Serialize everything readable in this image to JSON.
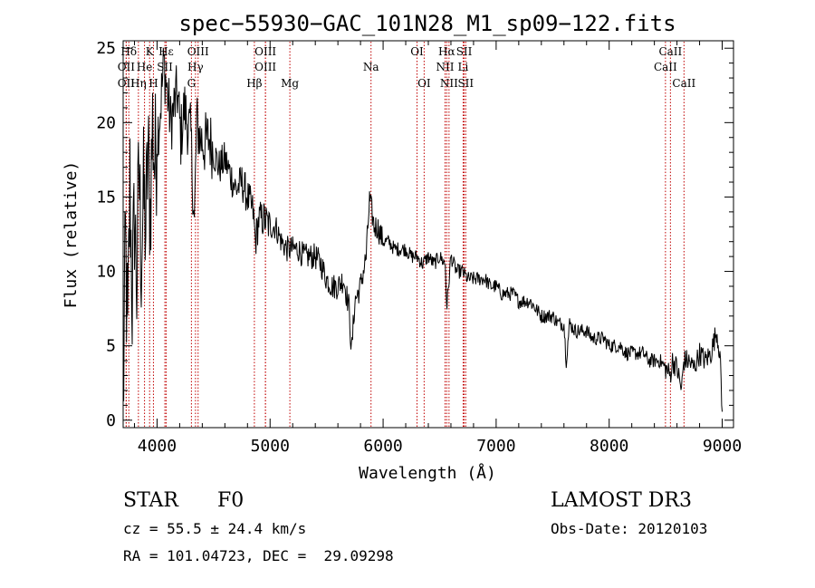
{
  "chart_data": {
    "type": "line",
    "title": "spec−55930−GAC_101N28_M1_sp09−122.fits",
    "xlabel": "Wavelength (Å)",
    "ylabel": "Flux (relative)",
    "xlim": [
      3700,
      9100
    ],
    "ylim": [
      -0.5,
      25.5
    ],
    "xticks": [
      4000,
      5000,
      6000,
      7000,
      8000,
      9000
    ],
    "yticks": [
      0,
      5,
      10,
      15,
      20,
      25
    ],
    "series": [
      {
        "name": "flux",
        "x": [
          3700,
          3720,
          3740,
          3760,
          3780,
          3800,
          3820,
          3840,
          3860,
          3880,
          3900,
          3920,
          3940,
          3960,
          3980,
          4000,
          4030,
          4060,
          4090,
          4120,
          4150,
          4180,
          4210,
          4240,
          4270,
          4300,
          4330,
          4350,
          4380,
          4420,
          4460,
          4500,
          4550,
          4600,
          4650,
          4700,
          4750,
          4800,
          4850,
          4870,
          4900,
          4950,
          5000,
          5050,
          5100,
          5150,
          5200,
          5250,
          5300,
          5350,
          5400,
          5450,
          5500,
          5550,
          5600,
          5650,
          5700,
          5720,
          5750,
          5800,
          5850,
          5880,
          5900,
          5920,
          5950,
          6000,
          6050,
          6100,
          6150,
          6200,
          6250,
          6300,
          6350,
          6400,
          6450,
          6500,
          6550,
          6563,
          6600,
          6650,
          6700,
          6750,
          6800,
          6850,
          6900,
          6950,
          7000,
          7050,
          7100,
          7150,
          7200,
          7250,
          7300,
          7350,
          7400,
          7450,
          7500,
          7550,
          7600,
          7620,
          7650,
          7700,
          7750,
          7800,
          7850,
          7900,
          7950,
          8000,
          8050,
          8100,
          8150,
          8200,
          8250,
          8300,
          8350,
          8400,
          8450,
          8500,
          8540,
          8560,
          8600,
          8640,
          8660,
          8700,
          8750,
          8800,
          8850,
          8900,
          8950,
          8980,
          9000
        ],
        "y": [
          0.3,
          12,
          5,
          16,
          8,
          14,
          9,
          17,
          11,
          15,
          13,
          18,
          14,
          20,
          17,
          19,
          21,
          24,
          22,
          20,
          21,
          22,
          19,
          21,
          20,
          19,
          13,
          20,
          19,
          18.5,
          19,
          18,
          17,
          17.5,
          16.5,
          15.5,
          16,
          15,
          14,
          12,
          13.5,
          13.5,
          13,
          13,
          12,
          11.5,
          11.5,
          11.5,
          11,
          11,
          11,
          10.5,
          9.5,
          9,
          9,
          9.5,
          7.5,
          4.5,
          8,
          9,
          11,
          14.8,
          14,
          13,
          13,
          12,
          12,
          11.5,
          11.5,
          11.5,
          11,
          11,
          10.5,
          11,
          10.5,
          11,
          10.5,
          7.5,
          11,
          10,
          10,
          9.5,
          9.5,
          9.5,
          9.5,
          9,
          9,
          8.5,
          8.5,
          8.5,
          8,
          8,
          8,
          7.5,
          7,
          7,
          7,
          6.5,
          6.5,
          4,
          6.5,
          6,
          6,
          6,
          5.5,
          5.5,
          5.5,
          5,
          5,
          5,
          4.5,
          4.5,
          4.5,
          4.5,
          4,
          4,
          4,
          3.5,
          3,
          4,
          3.5,
          2,
          4,
          4,
          3.5,
          4.5,
          4,
          4.5,
          6,
          4.5,
          0.3
        ]
      }
    ],
    "spectral_lines": [
      {
        "label": "Hδ",
        "x": 3750,
        "row": 1
      },
      {
        "label": "K",
        "x": 3934,
        "row": 1
      },
      {
        "label": "Hε",
        "x": 4080,
        "row": 1
      },
      {
        "label": "OIII",
        "x": 4363,
        "row": 1
      },
      {
        "label": "OIII",
        "x": 4959,
        "row": 1
      },
      {
        "label": "OI",
        "x": 6300,
        "row": 1
      },
      {
        "label": "Hα",
        "x": 6563,
        "row": 1
      },
      {
        "label": "SII",
        "x": 6717,
        "row": 1
      },
      {
        "label": "CaII",
        "x": 8542,
        "row": 1
      },
      {
        "label": "OII",
        "x": 3727,
        "row": 2
      },
      {
        "label": "He",
        "x": 3889,
        "row": 2
      },
      {
        "label": "SII",
        "x": 4069,
        "row": 2
      },
      {
        "label": "Hγ",
        "x": 4340,
        "row": 2
      },
      {
        "label": "OIII",
        "x": 4959,
        "row": 2
      },
      {
        "label": "NII",
        "x": 6548,
        "row": 2
      },
      {
        "label": "Li",
        "x": 6708,
        "row": 2
      },
      {
        "label": "CaII",
        "x": 8498,
        "row": 2
      },
      {
        "label": "OII",
        "x": 3727,
        "row": 3
      },
      {
        "label": "Hη",
        "x": 3835,
        "row": 3
      },
      {
        "label": "H",
        "x": 3968,
        "row": 3
      },
      {
        "label": "G",
        "x": 4304,
        "row": 3
      },
      {
        "label": "Hβ",
        "x": 4861,
        "row": 3
      },
      {
        "label": "Mg",
        "x": 5175,
        "row": 3
      },
      {
        "label": "Na",
        "x": 5893,
        "row": 2
      },
      {
        "label": "OI",
        "x": 6363,
        "row": 3
      },
      {
        "label": "NII",
        "x": 6583,
        "row": 3
      },
      {
        "label": "SII",
        "x": 6731,
        "row": 3
      },
      {
        "label": "CaII",
        "x": 8662,
        "row": 3
      }
    ],
    "line_color": "#000000",
    "marker_color": "#c00000"
  },
  "info": {
    "object_type": "STAR",
    "subclass": "F0",
    "survey": "LAMOST DR3",
    "redshift": "cz = 55.5 ± 24.4 km/s",
    "obs_date": "Obs-Date: 20120103",
    "coords": "RA = 101.04723, DEC =  29.09298"
  }
}
